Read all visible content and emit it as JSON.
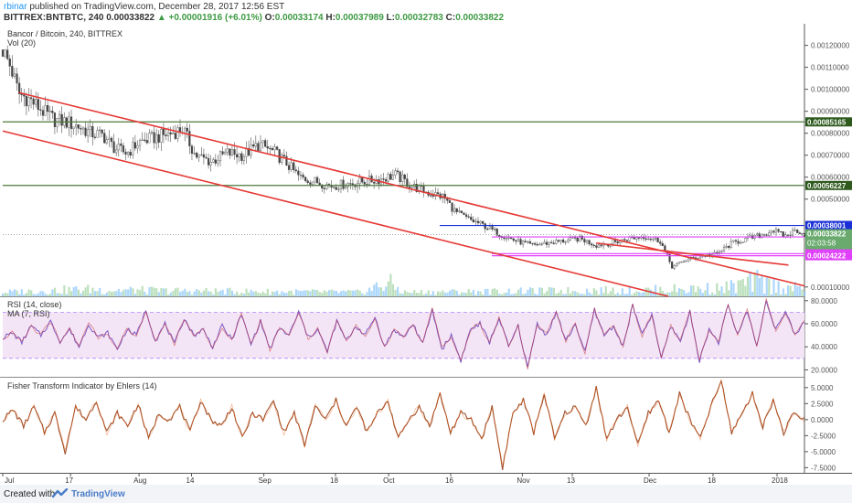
{
  "header": {
    "username": "rbinar",
    "published_text": "published on TradingView.com, December 28, 2017 12:56 EST",
    "symbol": "BITTREX:BNTBTC, 240",
    "last": "0.00033822",
    "change": "▲ +0.00001916 (+6.01%)",
    "o_label": "O:",
    "o": "0.00033174",
    "h_label": "H:",
    "h": "0.00037989",
    "l_label": "L:",
    "l": "0.00032783",
    "c_label": "C:",
    "c": "0.00033822"
  },
  "footer": {
    "made_with": "Created with",
    "brand": "TradingView"
  },
  "colors": {
    "channel": "#e53935",
    "green_line": "#4c7a3a",
    "blue_line": "#1a2fd6",
    "magenta_line": "#e040fb",
    "rsi": "#7e57c2",
    "rsi_band": "#f3e5f5",
    "fisher": "#a0522d",
    "volume": "#90caf9",
    "volume_up": "#a5d6a7"
  },
  "chart_data": [
    {
      "type": "candlestick",
      "title": "Bancor / Bitcoin, 240, BITTREX",
      "legend": [
        "Vol (20)"
      ],
      "yaxis_side": "right",
      "ylim": [
        5.75e-05,
        0.00129
      ],
      "y_ticks": [
        0.0012,
        0.0011,
        0.001,
        0.0009,
        0.0008,
        0.0007,
        0.0006,
        0.0005,
        0.0001
      ],
      "y_tick_labels": [
        "0.00120000",
        "0.00110000",
        "0.00100000",
        "0.00090000",
        "0.00080000",
        "0.00070000",
        "0.00060000",
        "0.00050000",
        "0.00010000"
      ],
      "price_path": [
        [
          0,
          0.00118
        ],
        [
          0.01,
          0.0011
        ],
        [
          0.02,
          0.00098
        ],
        [
          0.035,
          0.00095
        ],
        [
          0.05,
          0.0009
        ],
        [
          0.065,
          0.00086
        ],
        [
          0.08,
          0.00085
        ],
        [
          0.095,
          0.00083
        ],
        [
          0.11,
          0.0008
        ],
        [
          0.125,
          0.00079
        ],
        [
          0.14,
          0.00073
        ],
        [
          0.155,
          0.00071
        ],
        [
          0.17,
          0.00076
        ],
        [
          0.19,
          0.00078
        ],
        [
          0.21,
          0.0008
        ],
        [
          0.225,
          0.00082
        ],
        [
          0.24,
          0.0007
        ],
        [
          0.26,
          0.00067
        ],
        [
          0.28,
          0.00071
        ],
        [
          0.3,
          0.0007
        ],
        [
          0.32,
          0.00075
        ],
        [
          0.34,
          0.00071
        ],
        [
          0.355,
          0.00066
        ],
        [
          0.37,
          0.0006
        ],
        [
          0.39,
          0.00058
        ],
        [
          0.41,
          0.00056
        ],
        [
          0.43,
          0.00057
        ],
        [
          0.45,
          0.00058
        ],
        [
          0.47,
          0.00059
        ],
        [
          0.49,
          0.00061
        ],
        [
          0.51,
          0.00056
        ],
        [
          0.53,
          0.00053
        ],
        [
          0.55,
          0.00051
        ],
        [
          0.565,
          0.00044
        ],
        [
          0.58,
          0.00041
        ],
        [
          0.6,
          0.00038
        ],
        [
          0.62,
          0.00034
        ],
        [
          0.64,
          0.00031
        ],
        [
          0.66,
          0.00029
        ],
        [
          0.68,
          0.0003
        ],
        [
          0.7,
          0.00031
        ],
        [
          0.72,
          0.00032
        ],
        [
          0.74,
          0.00029
        ],
        [
          0.76,
          0.0003
        ],
        [
          0.78,
          0.00032
        ],
        [
          0.8,
          0.00033
        ],
        [
          0.82,
          0.00031
        ],
        [
          0.835,
          0.00019
        ],
        [
          0.85,
          0.00022
        ],
        [
          0.87,
          0.00024
        ],
        [
          0.89,
          0.00025
        ],
        [
          0.91,
          0.0003
        ],
        [
          0.93,
          0.00032
        ],
        [
          0.95,
          0.00034
        ],
        [
          0.96,
          0.00036
        ],
        [
          0.975,
          0.00033
        ],
        [
          0.99,
          0.00036
        ],
        [
          1.0,
          0.00034
        ]
      ],
      "trendlines": [
        {
          "name": "channel-upper",
          "color": "#e53935",
          "points": [
            [
              0.02,
              0.000985
            ],
            [
              1.0,
              0.000105
            ]
          ]
        },
        {
          "name": "channel-lower",
          "color": "#e53935",
          "points": [
            [
              0.0,
              0.00081
            ],
            [
              0.83,
              5.75e-05
            ]
          ]
        },
        {
          "name": "inner-line",
          "color": "#e53935",
          "points": [
            [
              0.74,
              0.0003
            ],
            [
              0.98,
              0.0002
            ]
          ]
        }
      ],
      "horizontal_levels": [
        {
          "value": 0.00085165,
          "label": "0.00085165",
          "color": "#4c7a3a",
          "label_bg": "#2e5a1e",
          "x_start": 0
        },
        {
          "value": 0.00056227,
          "label": "0.00056227",
          "color": "#4c7a3a",
          "label_bg": "#2e5a1e",
          "x_start": 0
        },
        {
          "value": 0.00038001,
          "label": "0.00038001",
          "color": "#1a2fd6",
          "label_bg": "#1a2fd6",
          "x_start": 0.545
        },
        {
          "value": 0.00032783,
          "label": "0.00032783",
          "color": "#e040fb",
          "label_bg": "#1a2fd6",
          "x_start": 0.61
        },
        {
          "value": 0.00025189,
          "label": "0.00025189",
          "color": "#e040fb",
          "label_bg": "#e040fb",
          "x_start": 0.61
        },
        {
          "value": 0.00024222,
          "label": "0.00024222",
          "color": "#e040fb",
          "label_bg": "#e040fb",
          "x_start": 0.61
        }
      ],
      "current_price": {
        "value": 0.00033822,
        "label": "0.00033822",
        "countdown": "02:03:58",
        "color": "#6aaa6e"
      },
      "volume_path": [
        [
          0,
          0.2
        ],
        [
          0.1,
          0.4
        ],
        [
          0.2,
          0.3
        ],
        [
          0.3,
          0.25
        ],
        [
          0.45,
          0.2
        ],
        [
          0.48,
          0.9
        ],
        [
          0.5,
          0.2
        ],
        [
          0.6,
          0.25
        ],
        [
          0.7,
          0.3
        ],
        [
          0.8,
          0.35
        ],
        [
          0.9,
          0.5
        ],
        [
          0.94,
          0.95
        ],
        [
          0.97,
          0.6
        ],
        [
          1.0,
          0.4
        ]
      ]
    },
    {
      "type": "line",
      "title": "RSI (14, close)",
      "legend": [
        "MA (7, RSI)"
      ],
      "ylim": [
        14,
        83
      ],
      "y_ticks": [
        80,
        60,
        40,
        20
      ],
      "y_tick_labels": [
        "80.0000",
        "60.0000",
        "40.0000",
        "20.0000"
      ],
      "bands": [
        30,
        70
      ],
      "series": [
        {
          "values": [
            48,
            52,
            44,
            58,
            50,
            62,
            45,
            55,
            40,
            60,
            48,
            52,
            38,
            55,
            50,
            72,
            45,
            60,
            42,
            65,
            50,
            55,
            40,
            58,
            46,
            68,
            42,
            62,
            38,
            56,
            50,
            70,
            48,
            55,
            36,
            62,
            45,
            58,
            50,
            66,
            40,
            55,
            48,
            60,
            42,
            72,
            38,
            50,
            28,
            55,
            60,
            44,
            65,
            40,
            58,
            22,
            60,
            50,
            70,
            45,
            60,
            35,
            72,
            50,
            58,
            40,
            76,
            50,
            68,
            30,
            58,
            45,
            70,
            28,
            55,
            44,
            76,
            50,
            72,
            40,
            80,
            55,
            70,
            50,
            62
          ]
        }
      ]
    },
    {
      "type": "line",
      "title": "Fisher Transform Indicator by Ehlers (14)",
      "ylim": [
        -8.3,
        6.4
      ],
      "y_ticks": [
        5,
        2.5,
        0,
        -2.5,
        -5,
        -7.5
      ],
      "y_tick_labels": [
        "5.0000",
        "2.5000",
        "0.0000",
        "-2.5000",
        "-5.0000",
        "-7.5000"
      ],
      "series": [
        {
          "values": [
            0,
            1.5,
            -1,
            2,
            -2,
            1,
            -5,
            2,
            0,
            3,
            -2,
            1,
            -1,
            2.5,
            -3,
            1,
            0,
            2,
            -2,
            3,
            0,
            -1,
            2,
            -3,
            1,
            0,
            3,
            -2,
            1,
            -4,
            2,
            0,
            3,
            -1,
            2,
            -2,
            1,
            3,
            -3,
            0,
            2,
            -1,
            4,
            -2,
            1,
            0,
            -3,
            2,
            -7.5,
            1,
            3,
            -2,
            4,
            -3,
            1,
            2,
            -1,
            5,
            -3,
            0,
            2,
            -4,
            1,
            3,
            -2,
            4,
            0,
            -3,
            2,
            6,
            -2,
            1,
            4,
            -1,
            3,
            -2,
            1,
            0
          ]
        }
      ]
    }
  ],
  "x_axis": {
    "labels": [
      "Jul",
      "17",
      "Aug",
      "14",
      "Sep",
      "18",
      "Oct",
      "16",
      "Nov",
      "13",
      "Dec",
      "18",
      "2018"
    ],
    "positions": [
      0.0,
      0.106,
      0.213,
      0.295,
      0.408,
      0.52,
      0.603,
      0.7,
      0.812,
      0.89,
      1.01,
      1.11,
      1.21
    ]
  }
}
